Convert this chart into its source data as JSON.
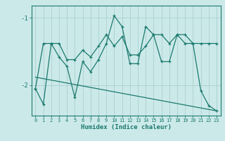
{
  "title": "",
  "xlabel": "Humidex (Indice chaleur)",
  "background_color": "#cce9e9",
  "line_color": "#1a7a6e",
  "grid_color": "#aacfcf",
  "xlim": [
    -0.5,
    23.5
  ],
  "ylim": [
    -2.45,
    -0.82
  ],
  "yticks": [
    -2,
    -1
  ],
  "xticks": [
    0,
    1,
    2,
    3,
    4,
    5,
    6,
    7,
    8,
    9,
    10,
    11,
    12,
    13,
    14,
    15,
    16,
    17,
    18,
    19,
    20,
    21,
    22,
    23
  ],
  "series1_x": [
    0,
    1,
    2,
    3,
    4,
    5,
    6,
    7,
    8,
    9,
    10,
    11,
    12,
    13,
    14,
    15,
    16,
    17,
    18,
    19,
    20,
    21,
    22,
    23
  ],
  "series1_y": [
    -2.05,
    -2.28,
    -1.38,
    -1.58,
    -1.72,
    -2.18,
    -1.65,
    -1.8,
    -1.62,
    -1.38,
    -0.97,
    -1.13,
    -1.68,
    -1.68,
    -1.13,
    -1.25,
    -1.65,
    -1.65,
    -1.25,
    -1.38,
    -1.38,
    -2.08,
    -2.3,
    -2.38
  ],
  "series2_x": [
    0,
    1,
    2,
    3,
    4,
    5,
    6,
    7,
    8,
    9,
    10,
    11,
    12,
    13,
    14,
    15,
    16,
    17,
    18,
    19,
    20,
    21,
    22,
    23
  ],
  "series2_y": [
    -2.05,
    -1.38,
    -1.38,
    -1.38,
    -1.62,
    -1.62,
    -1.48,
    -1.58,
    -1.42,
    -1.25,
    -1.42,
    -1.28,
    -1.55,
    -1.55,
    -1.42,
    -1.25,
    -1.25,
    -1.38,
    -1.25,
    -1.25,
    -1.38,
    -1.38,
    -1.38,
    -1.38
  ],
  "series3_x": [
    0,
    23
  ],
  "series3_y": [
    -1.88,
    -2.38
  ]
}
